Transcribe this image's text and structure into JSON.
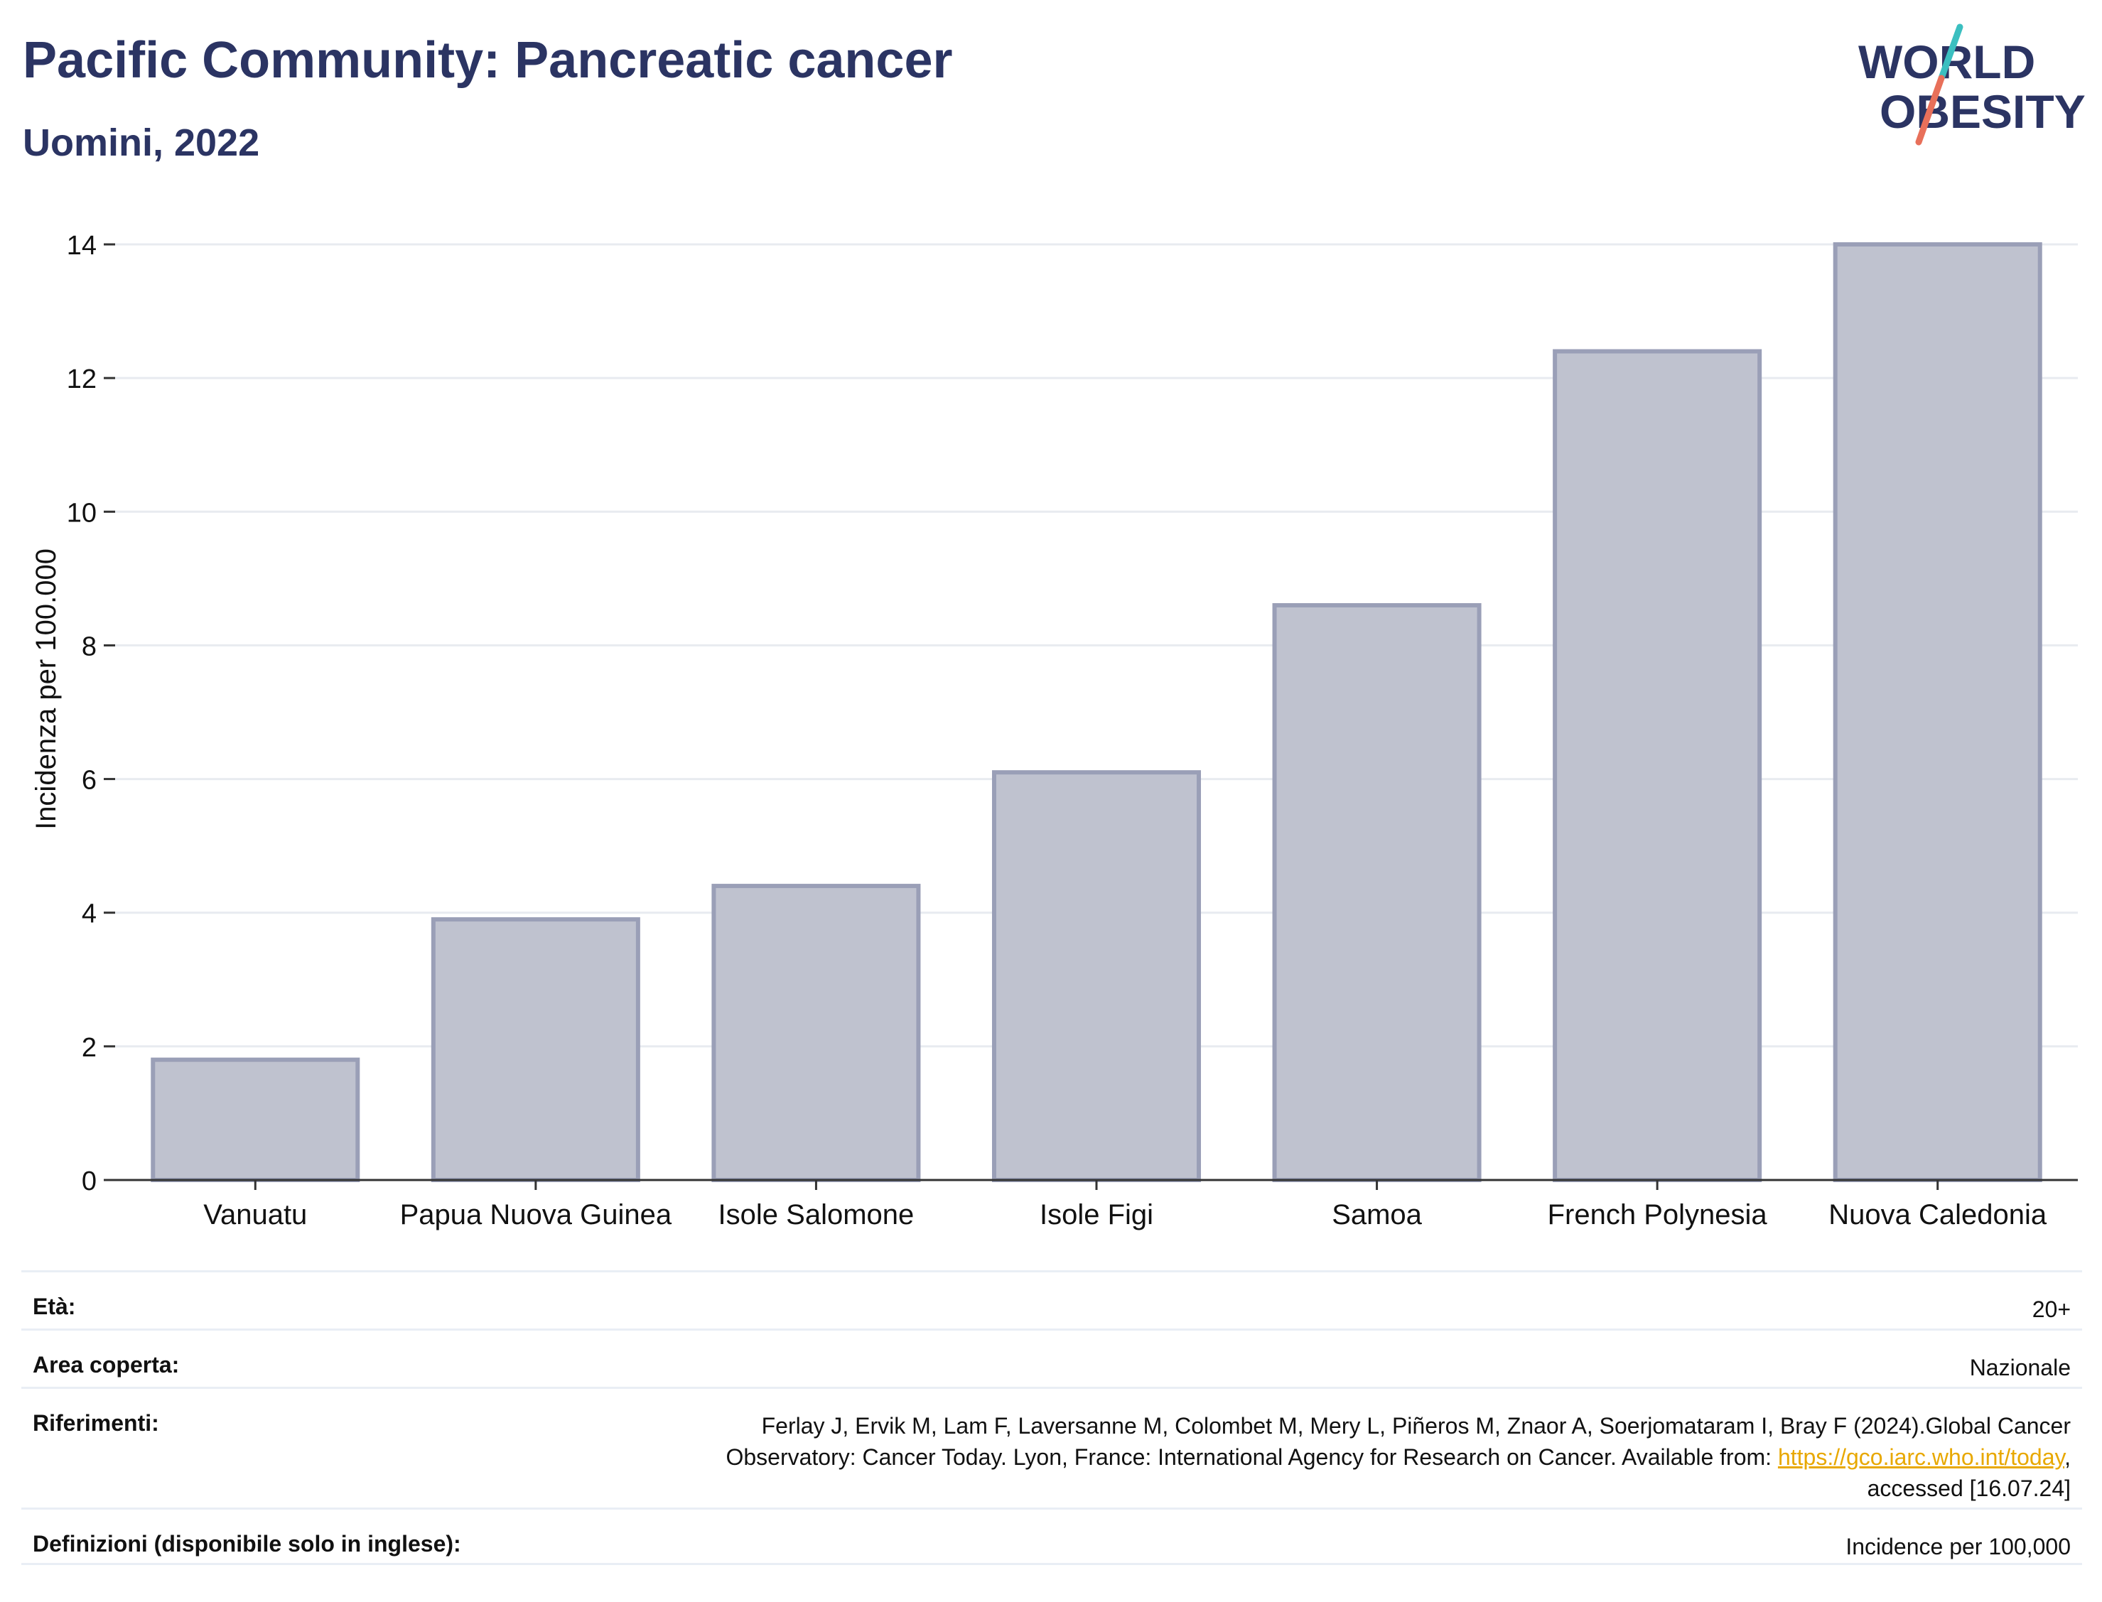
{
  "header": {
    "title": "Pacific Community: Pancreatic cancer",
    "subtitle": "Uomini, 2022"
  },
  "logo": {
    "line1": "WORLD",
    "line2": "OBESITY",
    "colors": {
      "text": "#2b3463",
      "slash_top": "#3bbfc0",
      "slash_bottom": "#e8705a"
    }
  },
  "chart_data": {
    "type": "bar",
    "categories": [
      "Vanuatu",
      "Papua Nuova Guinea",
      "Isole Salomone",
      "Isole Figi",
      "Samoa",
      "French Polynesia",
      "Nuova Caledonia"
    ],
    "values": [
      1.8,
      3.9,
      4.4,
      6.1,
      8.6,
      12.4,
      14.0
    ],
    "ylabel": "Incidenza per 100.000",
    "yticks": [
      "0",
      "2",
      "4",
      "6",
      "8",
      "10",
      "12",
      "14"
    ],
    "ylim": [
      0,
      14
    ],
    "grid": true,
    "colors": {
      "bar_fill": "#bfc2cf",
      "bar_stroke": "#9a9fb7"
    }
  },
  "info": {
    "age_label": "Età:",
    "age_value": "20+",
    "area_label": "Area coperta:",
    "area_value": "Nazionale",
    "ref_label": "Riferimenti:",
    "ref_line1": "Ferlay J, Ervik M, Lam F, Laversanne M, Colombet M, Mery L, Piñeros M, Znaor A, Soerjomataram I, Bray F (2024).Global Cancer",
    "ref_line2_pre": "Observatory: Cancer Today. Lyon, France: International Agency for Research on Cancer. Available from: ",
    "ref_link": "https://gco.iarc.who.int/today",
    "ref_line2_post": ",",
    "ref_line3": "accessed [16.07.24]",
    "def_label": "Definizioni (disponibile solo in inglese):",
    "def_value": "Incidence per 100,000"
  }
}
